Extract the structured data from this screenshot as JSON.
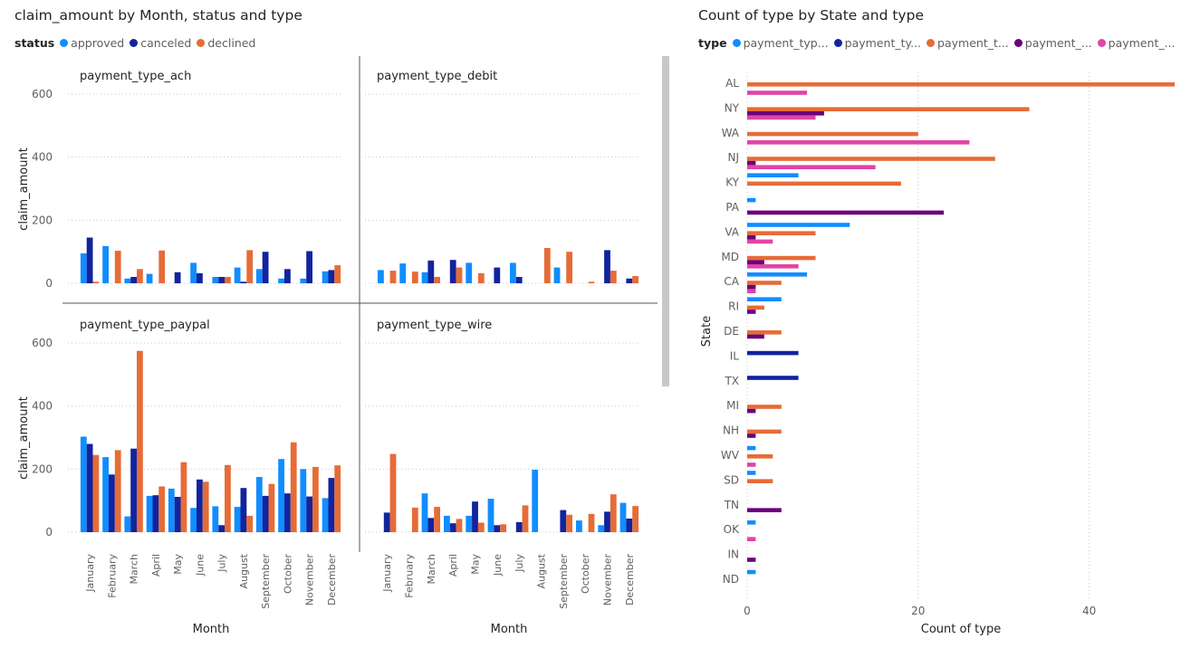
{
  "left_chart": {
    "title": "claim_amount by Month, status and type",
    "legend_title": "status",
    "ylabel": "claim_amount",
    "xlabel": "Month"
  },
  "right_chart": {
    "title": "Count of type by State and type",
    "legend_title": "type",
    "ylabel": "State",
    "xlabel": "Count of type"
  },
  "colors": {
    "approved": "#118DFF",
    "canceled": "#12239E",
    "declined": "#E66C37",
    "series4": "#6B007B",
    "series5": "#E044A7"
  },
  "chart_data": [
    {
      "type": "bar",
      "title": "claim_amount by Month, status and type",
      "xlabel": "Month",
      "ylabel": "claim_amount",
      "ylim": [
        0,
        600
      ],
      "yticks": [
        0,
        200,
        400,
        600
      ],
      "grid": true,
      "legend_position": "top-left",
      "categories": [
        "January",
        "February",
        "March",
        "April",
        "May",
        "June",
        "July",
        "August",
        "September",
        "October",
        "November",
        "December"
      ],
      "series_names": [
        "approved",
        "canceled",
        "declined"
      ],
      "panels": [
        {
          "name": "payment_type_ach",
          "series": [
            {
              "name": "approved",
              "values": [
                95,
                118,
                15,
                30,
                0,
                65,
                20,
                50,
                45,
                15,
                15,
                38
              ]
            },
            {
              "name": "canceled",
              "values": [
                145,
                0,
                20,
                0,
                35,
                32,
                20,
                5,
                100,
                45,
                102,
                42
              ]
            },
            {
              "name": "declined",
              "values": [
                5,
                103,
                45,
                104,
                0,
                0,
                20,
                105,
                0,
                0,
                0,
                57
              ]
            }
          ]
        },
        {
          "name": "payment_type_debit",
          "series": [
            {
              "name": "approved",
              "values": [
                42,
                63,
                35,
                0,
                65,
                0,
                65,
                0,
                50,
                0,
                0,
                0
              ]
            },
            {
              "name": "canceled",
              "values": [
                0,
                0,
                72,
                74,
                0,
                50,
                20,
                0,
                0,
                0,
                105,
                15
              ]
            },
            {
              "name": "declined",
              "values": [
                40,
                37,
                20,
                50,
                32,
                0,
                0,
                112,
                100,
                5,
                40,
                23
              ]
            }
          ]
        },
        {
          "name": "payment_type_paypal",
          "series": [
            {
              "name": "approved",
              "values": [
                303,
                238,
                50,
                115,
                138,
                77,
                82,
                80,
                175,
                232,
                200,
                108
              ]
            },
            {
              "name": "canceled",
              "values": [
                280,
                183,
                265,
                117,
                112,
                167,
                22,
                140,
                115,
                123,
                113,
                172
              ]
            },
            {
              "name": "declined",
              "values": [
                245,
                260,
                575,
                145,
                222,
                160,
                213,
                52,
                153,
                285,
                207,
                212
              ]
            }
          ]
        },
        {
          "name": "payment_type_wire",
          "series": [
            {
              "name": "approved",
              "values": [
                0,
                0,
                123,
                52,
                52,
                106,
                0,
                198,
                0,
                37,
                22,
                93
              ]
            },
            {
              "name": "canceled",
              "values": [
                62,
                0,
                45,
                28,
                97,
                22,
                32,
                0,
                70,
                0,
                65,
                43
              ]
            },
            {
              "name": "declined",
              "values": [
                248,
                78,
                80,
                42,
                30,
                25,
                85,
                0,
                55,
                58,
                120,
                83
              ]
            }
          ]
        }
      ]
    },
    {
      "type": "bar",
      "orientation": "horizontal",
      "title": "Count of type by State and type",
      "xlabel": "Count of type",
      "ylabel": "State",
      "xlim": [
        0,
        50
      ],
      "xticks": [
        0,
        20,
        40
      ],
      "grid": true,
      "legend_position": "top-left",
      "legend_labels": [
        "payment_typ...",
        "payment_ty...",
        "payment_t...",
        "payment_...",
        "payment_..."
      ],
      "categories": [
        "AL",
        "NY",
        "WA",
        "NJ",
        "KY",
        "PA",
        "VA",
        "MD",
        "CA",
        "RI",
        "DE",
        "IL",
        "TX",
        "MI",
        "NH",
        "WV",
        "SD",
        "TN",
        "OK",
        "IN",
        "ND"
      ],
      "series": [
        {
          "values": [
            0,
            0,
            0,
            0,
            6,
            1,
            12,
            0,
            7,
            4,
            0,
            0,
            0,
            0,
            0,
            1,
            1,
            0,
            1,
            0,
            1
          ]
        },
        {
          "values": [
            0,
            0,
            0,
            0,
            0,
            0,
            0,
            0,
            0,
            0,
            0,
            6,
            6,
            0,
            0,
            0,
            0,
            0,
            0,
            0,
            0
          ]
        },
        {
          "values": [
            51,
            33,
            20,
            29,
            18,
            0,
            8,
            8,
            4,
            2,
            4,
            0,
            0,
            4,
            4,
            3,
            3,
            0,
            0,
            0,
            0
          ]
        },
        {
          "values": [
            0,
            9,
            0,
            1,
            0,
            23,
            1,
            2,
            1,
            1,
            2,
            0,
            0,
            1,
            1,
            0,
            0,
            4,
            0,
            1,
            0
          ]
        },
        {
          "values": [
            7,
            8,
            26,
            15,
            0,
            0,
            3,
            6,
            1,
            0,
            0,
            0,
            0,
            0,
            0,
            1,
            0,
            0,
            1,
            0,
            0
          ]
        }
      ]
    }
  ]
}
